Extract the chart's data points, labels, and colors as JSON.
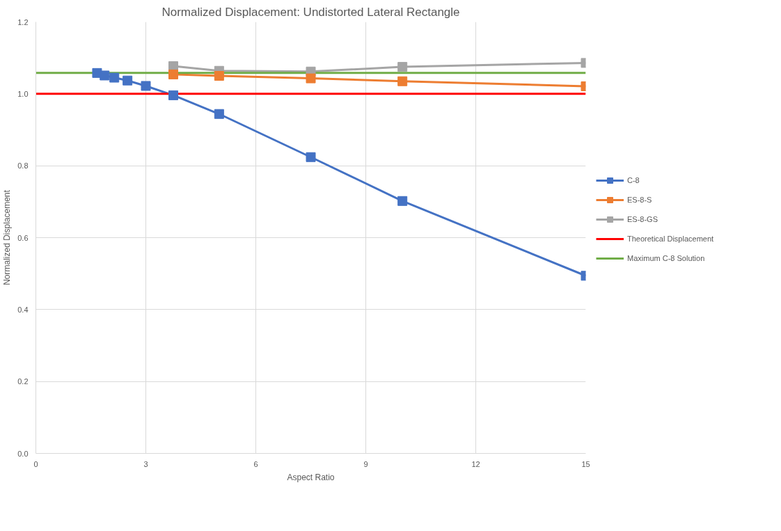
{
  "chart_data": {
    "type": "line",
    "title": "Normalized Displacement: Undistorted Lateral Rectangle",
    "xlabel": "Aspect Ratio",
    "ylabel": "Normalized Displacement",
    "xlim": [
      0,
      15
    ],
    "xticks": [
      0,
      3,
      6,
      9,
      12,
      15
    ],
    "ylim": [
      0,
      1.2
    ],
    "yticks": [
      {
        "value": 0,
        "label": "0.0"
      },
      {
        "value": 0.2,
        "label": "0.2"
      },
      {
        "value": 0.4,
        "label": "0.4"
      },
      {
        "value": 0.6,
        "label": "0.6"
      },
      {
        "value": 0.8,
        "label": "0.8"
      },
      {
        "value": 1.0,
        "label": "1.0"
      },
      {
        "value": 1.2,
        "label": "1.2"
      }
    ],
    "grid": true,
    "legend": "right",
    "marker": "square",
    "line_style": "solid",
    "series": [
      {
        "name": "C-8",
        "color": "#4472c4",
        "x": [
          1.67,
          1.875,
          2.14,
          2.5,
          3,
          3.75,
          5,
          7.5,
          10,
          15
        ],
        "values": [
          1.058,
          1.051,
          1.045,
          1.037,
          1.022,
          0.996,
          0.944,
          0.824,
          0.702,
          0.494
        ]
      },
      {
        "name": "ES-8-S",
        "color": "#ed7d31",
        "x": [
          3.75,
          5,
          7.5,
          10,
          15
        ],
        "values": [
          1.054,
          1.05,
          1.043,
          1.035,
          1.021
        ]
      },
      {
        "name": "ES-8-GS",
        "color": "#a5a5a5",
        "x": [
          3.75,
          5,
          7.5,
          10,
          15
        ],
        "values": [
          1.077,
          1.064,
          1.062,
          1.075,
          1.086
        ]
      },
      {
        "name": "Theoretical Displacement",
        "color": "#ff0000",
        "marker": "none",
        "x": [
          0,
          15
        ],
        "values": [
          1.0,
          1.0
        ]
      },
      {
        "name": "Maximum C-8 Solution",
        "color": "#70ad47",
        "marker": "none",
        "x": [
          0,
          15
        ],
        "values": [
          1.058,
          1.058
        ]
      }
    ]
  }
}
